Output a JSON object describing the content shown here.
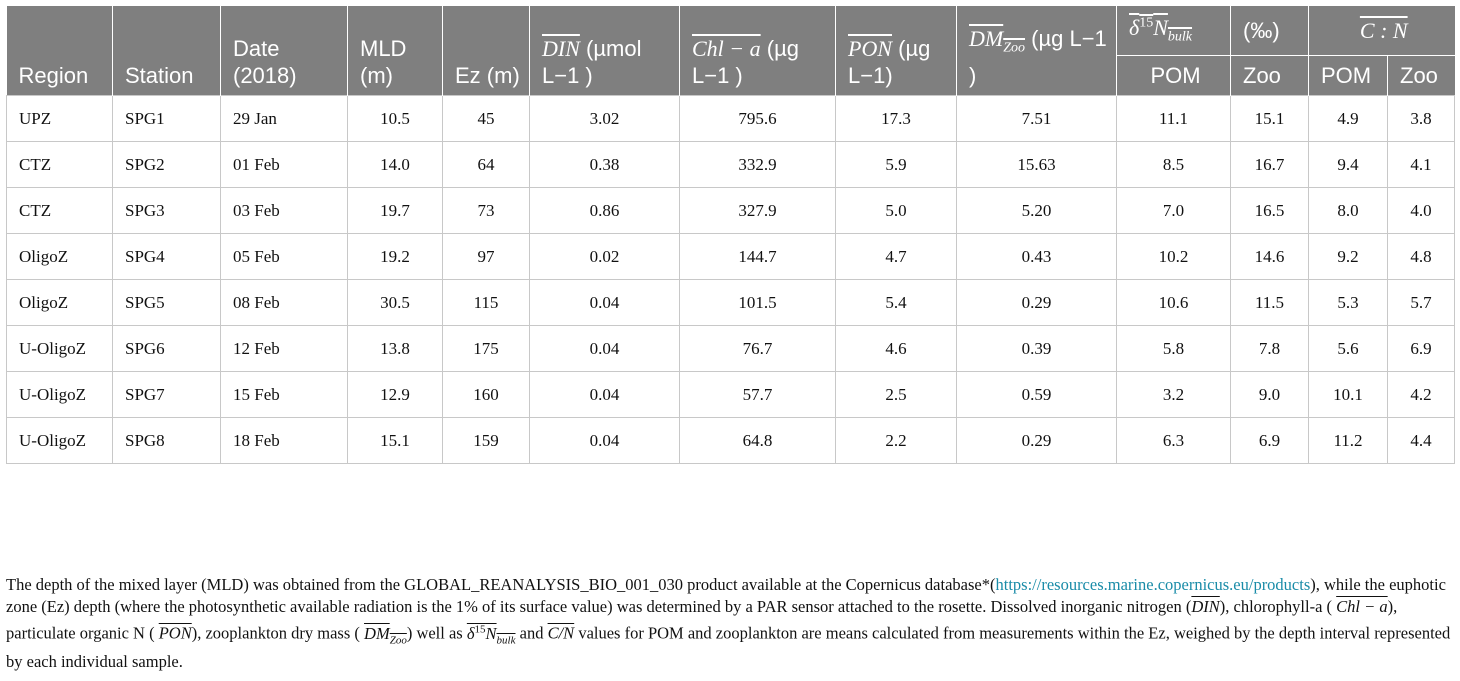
{
  "table": {
    "headers": {
      "region": "Region",
      "station": "Station",
      "date": "Date (2018)",
      "mld": "MLD (m)",
      "ez": "Ez (m)",
      "din_sym": "DIN",
      "din_unit": " (µmol L−1 )",
      "chl_sym": "Chl − a",
      "chl_unit": " (µg L−1 )",
      "pon_sym": "PON",
      "pon_unit": " (µg L−1)",
      "dm_sym": "DM",
      "dm_sub": "Zoo",
      "dm_unit": " (µg L−1 )",
      "delta_sym": "δ",
      "delta_sup": "15",
      "delta_n": "N",
      "delta_sub": "bulk",
      "permil": "(‰)",
      "cn_sym": "C : N",
      "pom": "POM",
      "zoo": "Zoo",
      "pom2": "POM",
      "zoo2": "Zoo"
    },
    "rows": [
      {
        "region": "UPZ",
        "station": "SPG1",
        "date": "29 Jan",
        "mld": "10.5",
        "ez": "45",
        "din": "3.02",
        "chl": "795.6",
        "pon": "17.3",
        "dm": "7.51",
        "d15_pom": "11.1",
        "d15_zoo": "15.1",
        "cn_pom": "4.9",
        "cn_zoo": "3.8"
      },
      {
        "region": "CTZ",
        "station": "SPG2",
        "date": "01 Feb",
        "mld": "14.0",
        "ez": "64",
        "din": "0.38",
        "chl": "332.9",
        "pon": "5.9",
        "dm": "15.63",
        "d15_pom": "8.5",
        "d15_zoo": "16.7",
        "cn_pom": "9.4",
        "cn_zoo": "4.1"
      },
      {
        "region": "CTZ",
        "station": "SPG3",
        "date": "03 Feb",
        "mld": "19.7",
        "ez": "73",
        "din": "0.86",
        "chl": "327.9",
        "pon": "5.0",
        "dm": "5.20",
        "d15_pom": "7.0",
        "d15_zoo": "16.5",
        "cn_pom": "8.0",
        "cn_zoo": "4.0"
      },
      {
        "region": "OligoZ",
        "station": "SPG4",
        "date": "05 Feb",
        "mld": "19.2",
        "ez": "97",
        "din": "0.02",
        "chl": "144.7",
        "pon": "4.7",
        "dm": "0.43",
        "d15_pom": "10.2",
        "d15_zoo": "14.6",
        "cn_pom": "9.2",
        "cn_zoo": "4.8"
      },
      {
        "region": "OligoZ",
        "station": "SPG5",
        "date": "08 Feb",
        "mld": "30.5",
        "ez": "115",
        "din": "0.04",
        "chl": "101.5",
        "pon": "5.4",
        "dm": "0.29",
        "d15_pom": "10.6",
        "d15_zoo": "11.5",
        "cn_pom": "5.3",
        "cn_zoo": "5.7"
      },
      {
        "region": "U-OligoZ",
        "station": "SPG6",
        "date": "12 Feb",
        "mld": "13.8",
        "ez": "175",
        "din": "0.04",
        "chl": "76.7",
        "pon": "4.6",
        "dm": "0.39",
        "d15_pom": "5.8",
        "d15_zoo": "7.8",
        "cn_pom": "5.6",
        "cn_zoo": "6.9"
      },
      {
        "region": "U-OligoZ",
        "station": "SPG7",
        "date": "15 Feb",
        "mld": "12.9",
        "ez": "160",
        "din": "0.04",
        "chl": "57.7",
        "pon": "2.5",
        "dm": "0.59",
        "d15_pom": "3.2",
        "d15_zoo": "9.0",
        "cn_pom": "10.1",
        "cn_zoo": "4.2"
      },
      {
        "region": "U-OligoZ",
        "station": "SPG8",
        "date": "18 Feb",
        "mld": "15.1",
        "ez": "159",
        "din": "0.04",
        "chl": "64.8",
        "pon": "2.2",
        "dm": "0.29",
        "d15_pom": "6.3",
        "d15_zoo": "6.9",
        "cn_pom": "11.2",
        "cn_zoo": "4.4"
      }
    ]
  },
  "footnote": {
    "p1": "The depth of the mixed layer (MLD) was obtained from the GLOBAL_REANALYSIS_BIO_001_030 product available at the Copernicus database*(",
    "link": "https://resources.marine.copernicus.eu/products",
    "p2": "), while the euphotic zone (Ez) depth (where the photosynthetic available radiation is the 1% of its surface value) was determined by a PAR sensor attached to the rosette. Dissolved inorganic nitrogen (",
    "din": "DIN",
    "p3": "), chlorophyll-a ( ",
    "chl": "Chl − a",
    "p4": "), particulate organic N ( ",
    "pon": "PON",
    "p5": "), zooplankton dry mass ( ",
    "dm": "DM",
    "dm_sub": "Zoo",
    "p6": ") well as ",
    "delta": "δ",
    "delta_sup": "15",
    "delta_n": "N",
    "delta_sub": "bulk",
    "p7": " and ",
    "cn": "C/N",
    "p8": " values for POM and zooplankton are means calculated from measurements within the Ez, weighed by the depth interval represented by each individual sample."
  }
}
